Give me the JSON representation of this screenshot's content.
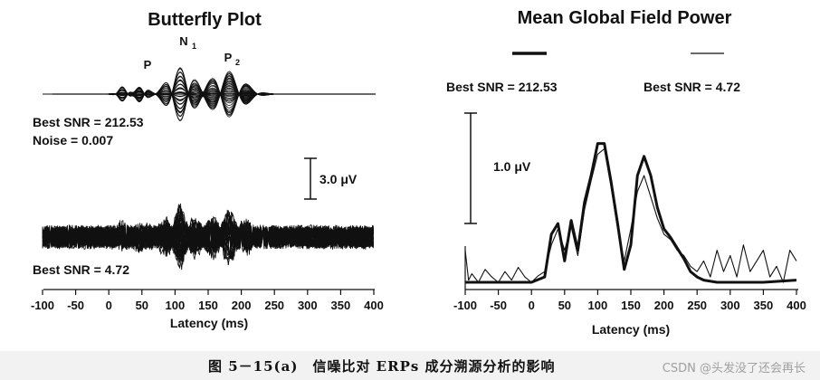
{
  "chart_data": [
    {
      "type": "line",
      "title": "Butterfly Plot",
      "panels": [
        {
          "annotations": [
            "Best SNR = 212.53",
            "Noise = 0.007"
          ],
          "peaks": [
            "P",
            "N",
            "1",
            "P",
            "2"
          ]
        },
        {
          "annotations": [
            "Best SNR = 4.72"
          ]
        }
      ],
      "scale_bar": "3.0 μV",
      "xlabel": "Latency (ms)",
      "xticks": [
        "-100",
        "-50",
        "0",
        "50",
        "100",
        "150",
        "200",
        "250",
        "300",
        "350",
        "400"
      ],
      "xlim": [
        -100,
        400
      ],
      "grid": false
    },
    {
      "type": "line",
      "title": "Mean Global Field Power",
      "series": [
        {
          "name": "Best SNR = 212.53",
          "line": "thick",
          "x": [
            -100,
            -50,
            0,
            20,
            30,
            40,
            50,
            60,
            70,
            80,
            90,
            100,
            110,
            120,
            130,
            140,
            150,
            160,
            170,
            180,
            190,
            200,
            210,
            220,
            230,
            240,
            250,
            260,
            280,
            300,
            350,
            400
          ],
          "y": [
            0,
            0,
            0,
            0.05,
            0.45,
            0.55,
            0.2,
            0.58,
            0.3,
            0.75,
            1.0,
            1.3,
            1.3,
            0.95,
            0.55,
            0.12,
            0.35,
            1.0,
            1.18,
            1.0,
            0.7,
            0.5,
            0.42,
            0.32,
            0.22,
            0.1,
            0.05,
            0.02,
            0,
            0,
            0,
            0.02
          ]
        },
        {
          "name": "Best SNR = 4.72",
          "line": "thin",
          "x": [
            -100,
            -95,
            -90,
            -80,
            -70,
            -60,
            -50,
            -40,
            -30,
            -20,
            -10,
            0,
            10,
            20,
            30,
            40,
            50,
            60,
            70,
            80,
            90,
            100,
            110,
            120,
            130,
            140,
            150,
            160,
            170,
            180,
            190,
            200,
            210,
            220,
            230,
            240,
            250,
            260,
            270,
            280,
            290,
            300,
            310,
            320,
            330,
            340,
            350,
            360,
            370,
            380,
            390,
            400
          ],
          "y": [
            0.3,
            0.02,
            0.08,
            0.0,
            0.12,
            0.05,
            0.0,
            0.1,
            0.02,
            0.14,
            0.05,
            0.0,
            0.06,
            0.1,
            0.35,
            0.5,
            0.3,
            0.52,
            0.25,
            0.68,
            0.95,
            1.2,
            1.25,
            0.9,
            0.5,
            0.2,
            0.5,
            0.85,
            1.0,
            0.8,
            0.6,
            0.45,
            0.4,
            0.3,
            0.25,
            0.15,
            0.1,
            0.2,
            0.05,
            0.3,
            0.1,
            0.25,
            0.05,
            0.35,
            0.1,
            0.2,
            0.3,
            0.05,
            0.15,
            0.0,
            0.3,
            0.2
          ]
        }
      ],
      "scale_bar": "1.0 μV",
      "xlabel": "Latency (ms)",
      "xticks": [
        "-100",
        "-50",
        "0",
        "50",
        "100",
        "150",
        "200",
        "250",
        "300",
        "350",
        "400"
      ],
      "xlim": [
        -100,
        400
      ],
      "legend": "top",
      "grid": false
    }
  ],
  "caption": "图 5－15(a)　信噪比对 ERPs 成分溯源分析的影响",
  "watermark": "CSDN @头发没了还会再长"
}
